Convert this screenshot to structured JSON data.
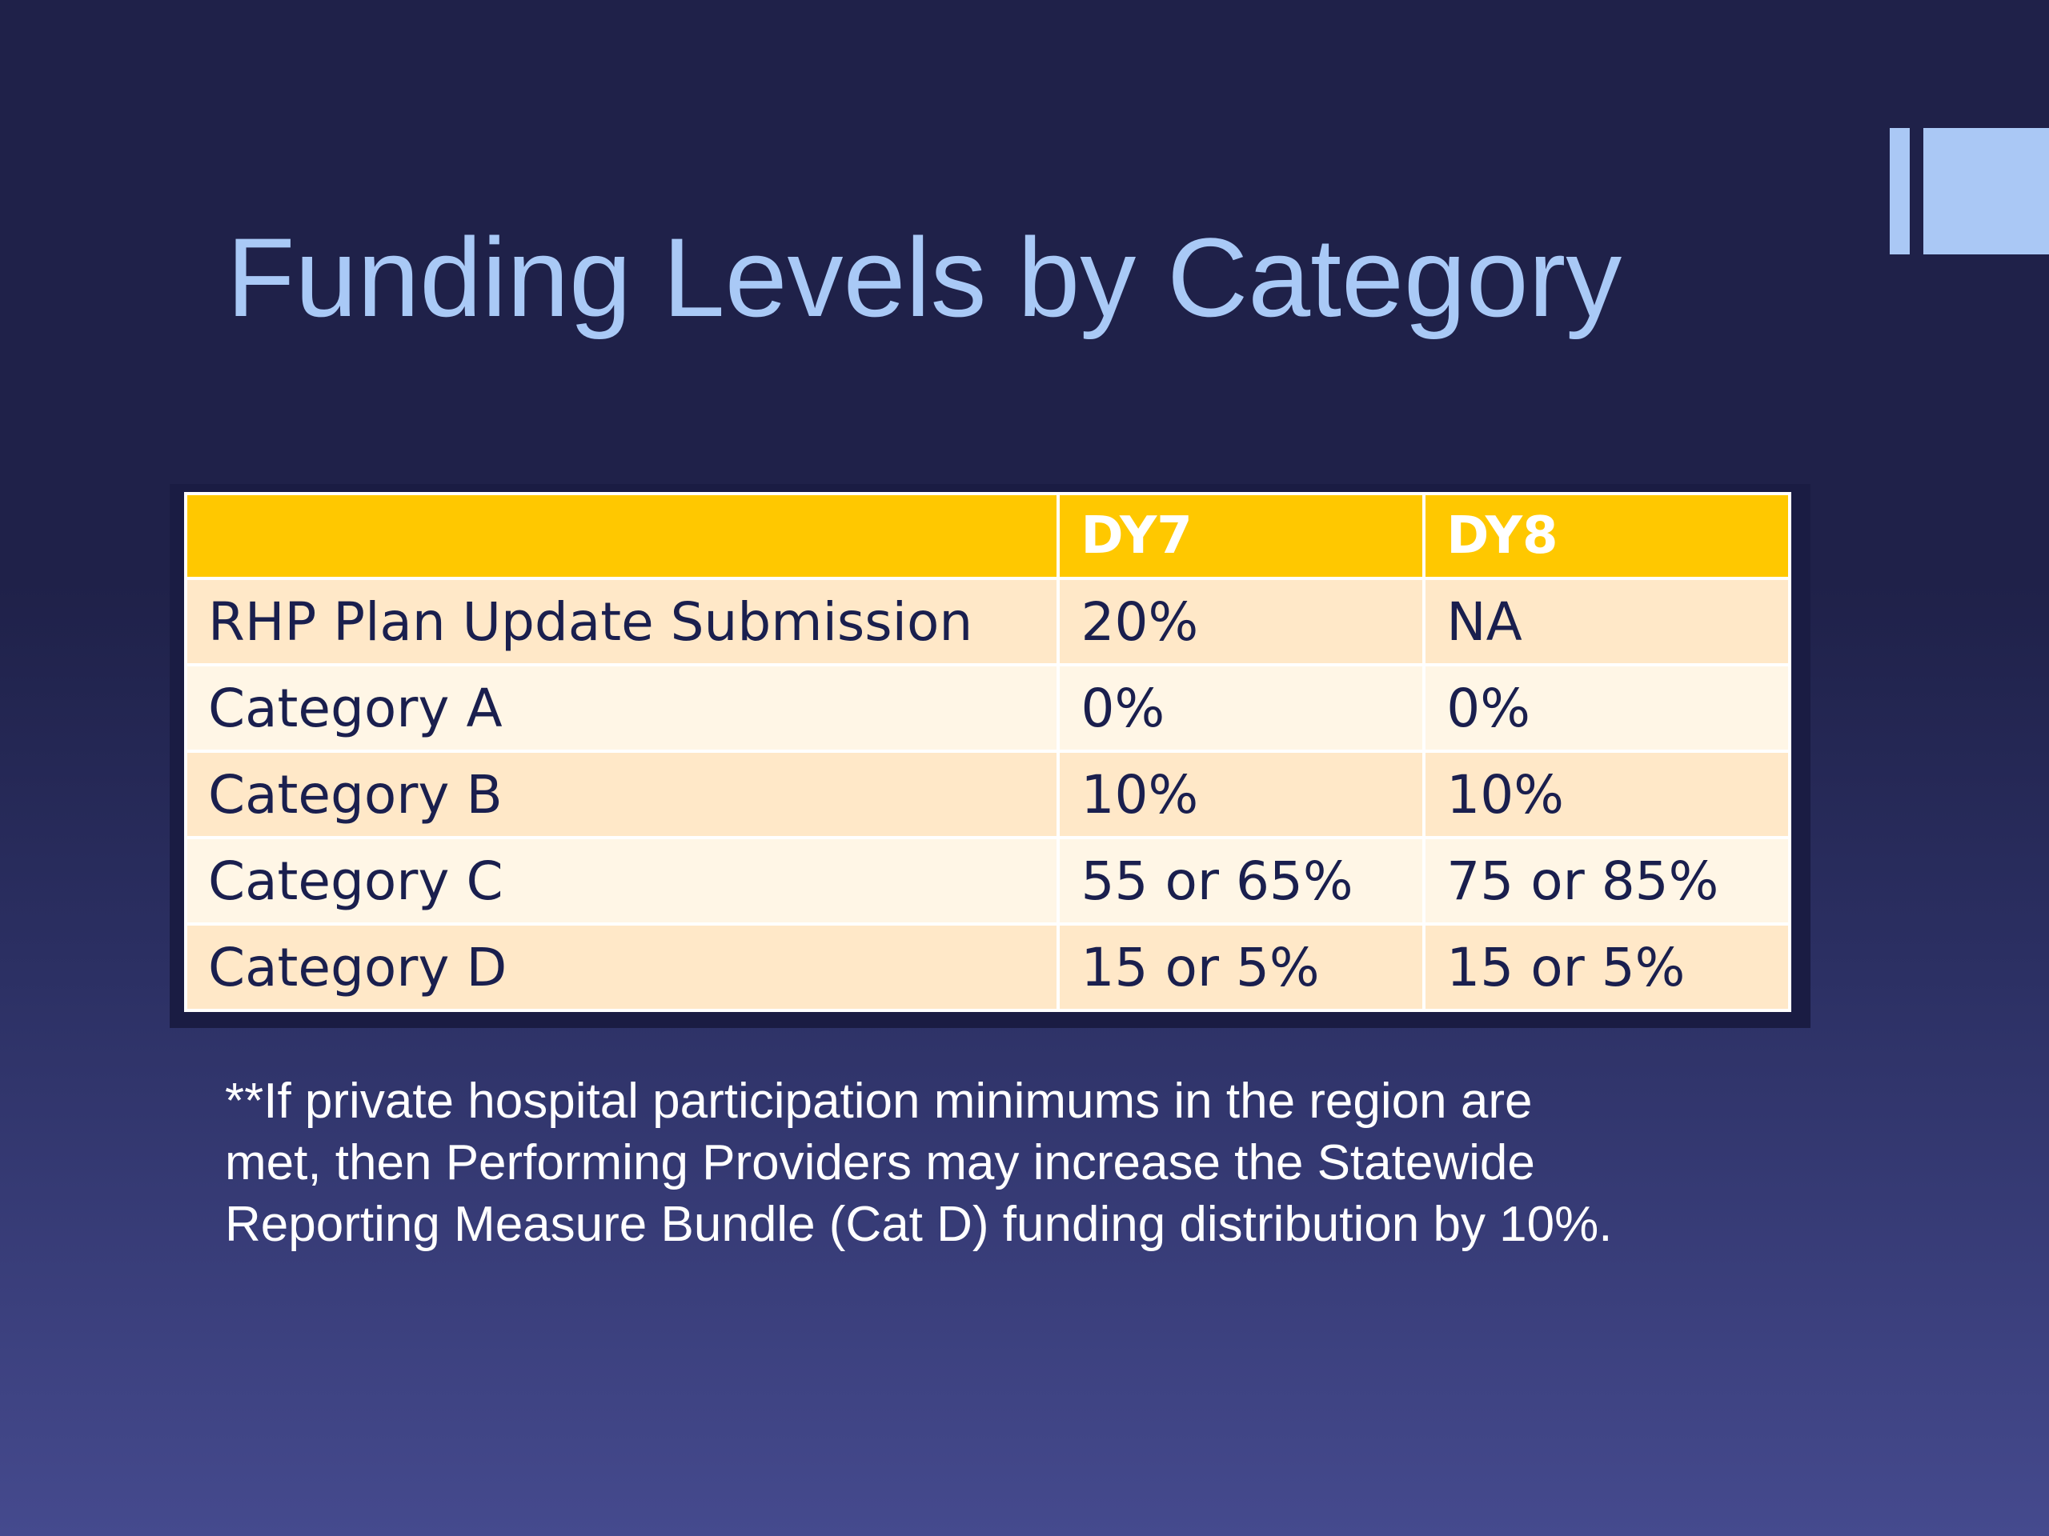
{
  "title": "Funding Levels by Category",
  "table": {
    "headers": [
      "",
      "DY7",
      "DY8"
    ],
    "rows": [
      [
        "RHP Plan Update Submission",
        "20%",
        "NA"
      ],
      [
        "Category A",
        "0%",
        "0%"
      ],
      [
        "Category B",
        "10%",
        "10%"
      ],
      [
        "Category C",
        "55 or 65%",
        "75 or 85%"
      ],
      [
        "Category D",
        "15 or 5%",
        "15 or 5%"
      ]
    ]
  },
  "footnote": {
    "lines": [
      "**If private hospital participation minimums in the region are",
      "met, then Performing Providers may increase the Statewide",
      "Reporting Measure Bundle (Cat D) funding distribution by 10%."
    ]
  },
  "colors": {
    "background_top": "#1f2149",
    "background_bottom": "#454a8e",
    "title": "#a9c9f6",
    "header_fill": "#ffc800",
    "row_odd": "#ffe8c8",
    "row_even": "#fff6e6",
    "accent_block": "#aac8f5"
  }
}
